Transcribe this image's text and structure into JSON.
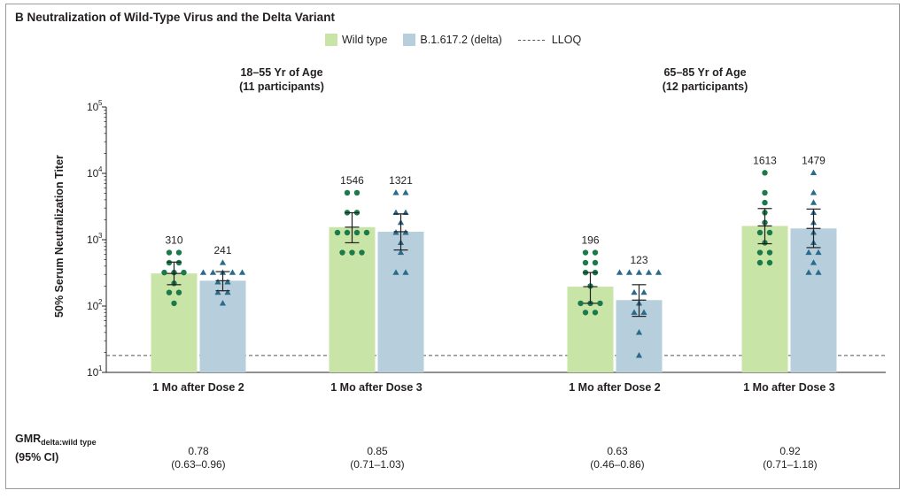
{
  "chart_data": {
    "type": "bar",
    "title": "B  Neutralization of Wild-Type Virus and the Delta Variant",
    "ylabel": "50% Serum Neutralization Titer",
    "yscale": "log",
    "ylim": [
      10,
      100000
    ],
    "yticks": [
      {
        "value": 10,
        "label": "10",
        "exp": "1"
      },
      {
        "value": 100,
        "label": "10",
        "exp": "2"
      },
      {
        "value": 1000,
        "label": "10",
        "exp": "3"
      },
      {
        "value": 10000,
        "label": "10",
        "exp": "4"
      },
      {
        "value": 100000,
        "label": "10",
        "exp": "5"
      }
    ],
    "lloq": 18,
    "legend": {
      "placement": "top-center",
      "entries": [
        {
          "label": "Wild type",
          "color": "#c9e4a7",
          "marker": "circle"
        },
        {
          "label": "B.1.617.2 (delta)",
          "color": "#b7cfdc",
          "marker": "triangle"
        },
        {
          "label": "LLOQ",
          "style": "dashed"
        }
      ]
    },
    "colors": {
      "wild_bar": "#c9e4a7",
      "delta_bar": "#b7cfdc",
      "wild_point": "#1a7a4a",
      "delta_point": "#2a6a8a",
      "lloq": "#555555"
    },
    "groups": [
      {
        "title_line1": "18–55 Yr of Age",
        "title_line2": "(11 participants)",
        "timepoints": [
          {
            "label": "1 Mo after Dose 2",
            "wild": {
              "gmt": 310,
              "ci": [
                210,
                460
              ],
              "points": [
                640,
                640,
                450,
                450,
                320,
                320,
                320,
                220,
                160,
                160,
                110
              ]
            },
            "delta": {
              "gmt": 241,
              "ci": [
                170,
                330
              ],
              "points": [
                450,
                320,
                320,
                320,
                320,
                320,
                230,
                230,
                160,
                160,
                110
              ]
            },
            "gmr": "0.78",
            "gmr_ci": "(0.63–0.96)"
          },
          {
            "label": "1 Mo after Dose 3",
            "wild": {
              "gmt": 1546,
              "ci": [
                900,
                2550
              ],
              "points": [
                5100,
                5100,
                2560,
                2560,
                1280,
                1280,
                1280,
                1280,
                640,
                640,
                640
              ]
            },
            "delta": {
              "gmt": 1321,
              "ci": [
                700,
                2450
              ],
              "points": [
                5100,
                5100,
                2560,
                2560,
                1810,
                1280,
                1280,
                900,
                640,
                320,
                320
              ]
            },
            "gmr": "0.85",
            "gmr_ci": "(0.71–1.03)"
          }
        ]
      },
      {
        "title_line1": "65–85 Yr of Age",
        "title_line2": "(12 participants)",
        "timepoints": [
          {
            "label": "1 Mo after Dose 2",
            "wild": {
              "gmt": 196,
              "ci": [
                110,
                320
              ],
              "points": [
                640,
                640,
                450,
                450,
                320,
                320,
                200,
                110,
                110,
                110,
                80,
                80
              ]
            },
            "delta": {
              "gmt": 123,
              "ci": [
                70,
                210
              ],
              "points": [
                320,
                320,
                320,
                320,
                320,
                160,
                160,
                110,
                80,
                80,
                40,
                18
              ]
            },
            "gmr": "0.63",
            "gmr_ci": "(0.46–0.86)"
          },
          {
            "label": "1 Mo after Dose 3",
            "wild": {
              "gmt": 1613,
              "ci": [
                870,
                2950
              ],
              "points": [
                10200,
                5100,
                3620,
                2560,
                1810,
                1280,
                1280,
                900,
                640,
                640,
                450,
                450
              ]
            },
            "delta": {
              "gmt": 1479,
              "ci": [
                760,
                2900
              ],
              "points": [
                10200,
                5100,
                3620,
                2560,
                1810,
                1280,
                900,
                640,
                640,
                450,
                320,
                320
              ]
            },
            "gmr": "0.92",
            "gmr_ci": "(0.71–1.18)"
          }
        ]
      }
    ],
    "gmr_row_label": "GMR",
    "gmr_row_sub": "delta:wild type",
    "gmr_row_label2": "(95% CI)"
  }
}
